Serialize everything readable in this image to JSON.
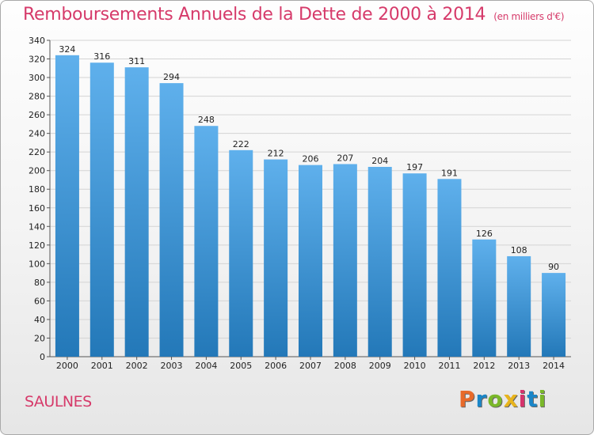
{
  "header": {
    "title": "Remboursements Annuels de la Dette de 2000 à 2014",
    "unit": "(en milliers d'€)"
  },
  "footer": {
    "town": "SAULNES",
    "brand_letters": [
      "P",
      "r",
      "o",
      "x",
      "i",
      "t",
      "i"
    ],
    "brand_colors": [
      "#e86a2a",
      "#1a86c8",
      "#7ab829",
      "#e8b41c",
      "#d6336c",
      "#1a86c8",
      "#7ab829"
    ]
  },
  "colors": {
    "bar_top": "#5fb0ec",
    "bar_bottom": "#2378b8",
    "grid": "#d4d4d4",
    "title": "#d63a6a"
  },
  "chart_data": {
    "type": "bar",
    "title": "Remboursements Annuels de la Dette de 2000 à 2014",
    "ylabel": "(en milliers d'€)",
    "xlabel": "",
    "categories": [
      "2000",
      "2001",
      "2002",
      "2003",
      "2004",
      "2005",
      "2006",
      "2007",
      "2008",
      "2009",
      "2010",
      "2011",
      "2012",
      "2013",
      "2014"
    ],
    "values": [
      324,
      316,
      311,
      294,
      248,
      222,
      212,
      206,
      207,
      204,
      197,
      191,
      126,
      108,
      90
    ],
    "ylim": [
      0,
      340
    ],
    "yticks": [
      0,
      20,
      40,
      60,
      80,
      100,
      120,
      140,
      160,
      180,
      200,
      220,
      240,
      260,
      280,
      300,
      320,
      340
    ],
    "grid": true
  }
}
